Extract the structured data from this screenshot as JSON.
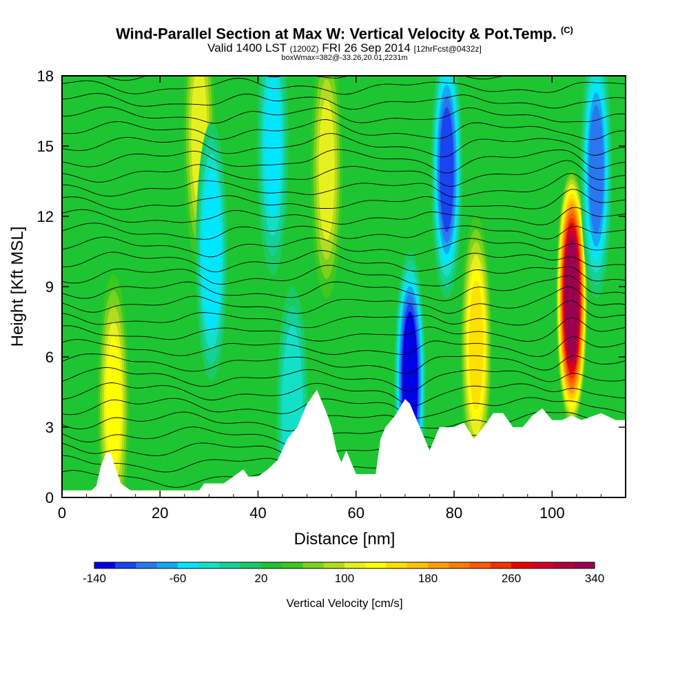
{
  "header": {
    "title": "Wind-Parallel Section at Max W: Vertical Velocity & Pot.Temp.",
    "title_tag": "(C)",
    "subtitle_main": "Valid 1400 LST",
    "subtitle_utc": "(1200Z)",
    "subtitle_date": "FRI 26 Sep 2014",
    "subtitle_fcst": "[12hrFcst@0432z]",
    "subtitle2": "boxWmax=382@-33.26,20.01,2231m"
  },
  "chart_data": {
    "type": "heatmap",
    "title": "Wind-Parallel Section at Max W: Vertical Velocity & Pot.Temp.",
    "xlabel": "Distance [nm]",
    "ylabel": "Height [Kft MSL]",
    "xlim": [
      0,
      115
    ],
    "ylim": [
      0,
      18
    ],
    "x_ticks": [
      0,
      20,
      40,
      60,
      80,
      100
    ],
    "y_ticks": [
      0,
      3,
      6,
      9,
      12,
      15,
      18
    ],
    "colorbar": {
      "label": "Vertical Velocity [cm/s]",
      "min": -140,
      "max": 340,
      "step": 20,
      "tick_labels": [
        "-140",
        "-60",
        "20",
        "100",
        "180",
        "260",
        "340"
      ],
      "colors": [
        "#0000e6",
        "#1a44f0",
        "#2a78f0",
        "#14a8f2",
        "#00e6ff",
        "#14e0c8",
        "#14d296",
        "#1acb64",
        "#1ec532",
        "#3cc81e",
        "#78d21e",
        "#b4dc1e",
        "#e6f01e",
        "#ffff00",
        "#ffe000",
        "#ffc400",
        "#ffa000",
        "#ff7c00",
        "#ff5a00",
        "#f53000",
        "#e60000",
        "#d20028",
        "#b4003c",
        "#9b0050"
      ]
    },
    "background_value": 30,
    "terrain_kft": [
      [
        0,
        0.3
      ],
      [
        2,
        0.3
      ],
      [
        6,
        0.3
      ],
      [
        7,
        0.5
      ],
      [
        8,
        1.4
      ],
      [
        9,
        1.9
      ],
      [
        10,
        1.9
      ],
      [
        11,
        1.2
      ],
      [
        12,
        0.6
      ],
      [
        14,
        0.3
      ],
      [
        18,
        0.3
      ],
      [
        24,
        0.3
      ],
      [
        28,
        0.3
      ],
      [
        29,
        0.6
      ],
      [
        33,
        0.6
      ],
      [
        35,
        0.9
      ],
      [
        37,
        1.2
      ],
      [
        38,
        0.9
      ],
      [
        40,
        0.9
      ],
      [
        42,
        1.2
      ],
      [
        44,
        1.6
      ],
      [
        46,
        2.5
      ],
      [
        48,
        3.0
      ],
      [
        50,
        4.0
      ],
      [
        52,
        4.6
      ],
      [
        54,
        3.6
      ],
      [
        55,
        3.0
      ],
      [
        56,
        2.0
      ],
      [
        57,
        1.5
      ],
      [
        58,
        2.0
      ],
      [
        59,
        1.5
      ],
      [
        60,
        1.0
      ],
      [
        64,
        1.0
      ],
      [
        65,
        2.5
      ],
      [
        66,
        3.0
      ],
      [
        68,
        3.5
      ],
      [
        70,
        4.2
      ],
      [
        71,
        4.0
      ],
      [
        72,
        3.5
      ],
      [
        73,
        3.0
      ],
      [
        74,
        2.5
      ],
      [
        75,
        2.0
      ],
      [
        76,
        2.5
      ],
      [
        77,
        3.0
      ],
      [
        80,
        3.0
      ],
      [
        82,
        3.2
      ],
      [
        84,
        2.5
      ],
      [
        86,
        3.0
      ],
      [
        88,
        3.6
      ],
      [
        90,
        3.6
      ],
      [
        92,
        3.0
      ],
      [
        94,
        3.0
      ],
      [
        96,
        3.5
      ],
      [
        98,
        3.8
      ],
      [
        100,
        3.3
      ],
      [
        102,
        3.3
      ],
      [
        104,
        3.5
      ],
      [
        106,
        3.3
      ],
      [
        110,
        3.6
      ],
      [
        113,
        3.3
      ],
      [
        115,
        3.3
      ]
    ],
    "w_features": [
      {
        "x": 10.5,
        "z": 4.0,
        "value": 130
      },
      {
        "x": 28.0,
        "z": 15.5,
        "value": 115
      },
      {
        "x": 30.5,
        "z": 10.5,
        "value": -60
      },
      {
        "x": 43.0,
        "z": 15.0,
        "value": -50
      },
      {
        "x": 47.0,
        "z": 3.5,
        "value": -40
      },
      {
        "x": 54.0,
        "z": 14.0,
        "value": 110
      },
      {
        "x": 71.0,
        "z": 5.0,
        "value": -140
      },
      {
        "x": 78.5,
        "z": 14.0,
        "value": -110
      },
      {
        "x": 84.5,
        "z": 6.5,
        "value": 140
      },
      {
        "x": 104.0,
        "z": 8.5,
        "value": 340
      },
      {
        "x": 109.0,
        "z": 14.0,
        "value": -90
      }
    ],
    "theta_contours": true
  },
  "axis_labels": {
    "x": "Distance [nm]",
    "y": "Height [Kft MSL]",
    "colorbar": "Vertical Velocity [cm/s]"
  }
}
